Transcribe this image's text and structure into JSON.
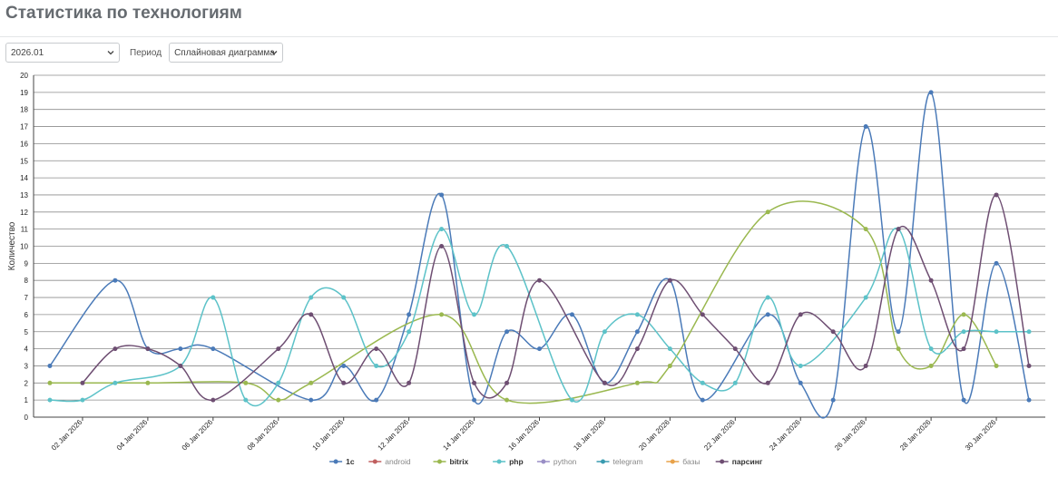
{
  "page": {
    "title": "Статистика по технологиям"
  },
  "controls": {
    "month_value": "2026.01",
    "period_label": "Период",
    "chart_type_value": "Сплайновая диаграмма"
  },
  "icons": {
    "select_chevron": "chevron-down-icon"
  },
  "chart_data": {
    "type": "line",
    "interpolation": "spline",
    "title": "",
    "xlabel": "",
    "ylabel": "Количество",
    "ylim": [
      0,
      20
    ],
    "yticks": [
      0,
      1,
      2,
      3,
      4,
      5,
      6,
      7,
      8,
      9,
      10,
      11,
      12,
      13,
      14,
      15,
      16,
      17,
      18,
      19,
      20
    ],
    "grid": true,
    "legend_position": "bottom",
    "x_domain": [
      "2026-01-01",
      "2026-01-31"
    ],
    "x_tick_labels": [
      "02 Jan 2026",
      "04 Jan 2026",
      "06 Jan 2026",
      "08 Jan 2026",
      "10 Jan 2026",
      "12 Jan 2026",
      "14 Jan 2026",
      "16 Jan 2026",
      "18 Jan 2026",
      "20 Jan 2026",
      "22 Jan 2026",
      "24 Jan 2026",
      "26 Jan 2026",
      "28 Jan 2026",
      "30 Jan 2026"
    ],
    "series": [
      {
        "name": "1c",
        "color": "#4a7ab8",
        "points": [
          [
            "2026-01-01",
            3
          ],
          [
            "2026-01-03",
            8
          ],
          [
            "2026-01-04",
            4
          ],
          [
            "2026-01-05",
            4
          ],
          [
            "2026-01-06",
            4
          ],
          [
            "2026-01-09",
            1
          ],
          [
            "2026-01-10",
            3
          ],
          [
            "2026-01-11",
            1
          ],
          [
            "2026-01-12",
            6
          ],
          [
            "2026-01-13",
            13
          ],
          [
            "2026-01-14",
            1
          ],
          [
            "2026-01-15",
            5
          ],
          [
            "2026-01-16",
            4
          ],
          [
            "2026-01-17",
            6
          ],
          [
            "2026-01-18",
            2
          ],
          [
            "2026-01-19",
            5
          ],
          [
            "2026-01-20",
            8
          ],
          [
            "2026-01-21",
            1
          ],
          [
            "2026-01-23",
            6
          ],
          [
            "2026-01-24",
            2
          ],
          [
            "2026-01-25",
            1
          ],
          [
            "2026-01-26",
            17
          ],
          [
            "2026-01-27",
            5
          ],
          [
            "2026-01-28",
            19
          ],
          [
            "2026-01-29",
            1
          ],
          [
            "2026-01-30",
            9
          ],
          [
            "2026-01-31",
            1
          ]
        ]
      },
      {
        "name": "android",
        "color": "#c05f5f",
        "points": []
      },
      {
        "name": "bitrix",
        "color": "#9ab84f",
        "points": [
          [
            "2026-01-01",
            2
          ],
          [
            "2026-01-04",
            2
          ],
          [
            "2026-01-07",
            2
          ],
          [
            "2026-01-08",
            1
          ],
          [
            "2026-01-09",
            2
          ],
          [
            "2026-01-13",
            6
          ],
          [
            "2026-01-15",
            1
          ],
          [
            "2026-01-19",
            2
          ],
          [
            "2026-01-20",
            3
          ],
          [
            "2026-01-23",
            12
          ],
          [
            "2026-01-26",
            11
          ],
          [
            "2026-01-27",
            4
          ],
          [
            "2026-01-28",
            3
          ],
          [
            "2026-01-29",
            6
          ],
          [
            "2026-01-30",
            3
          ]
        ]
      },
      {
        "name": "php",
        "color": "#5cc2c8",
        "points": [
          [
            "2026-01-01",
            1
          ],
          [
            "2026-01-02",
            1
          ],
          [
            "2026-01-03",
            2
          ],
          [
            "2026-01-05",
            3
          ],
          [
            "2026-01-06",
            7
          ],
          [
            "2026-01-07",
            1
          ],
          [
            "2026-01-08",
            2
          ],
          [
            "2026-01-09",
            7
          ],
          [
            "2026-01-10",
            7
          ],
          [
            "2026-01-11",
            3
          ],
          [
            "2026-01-12",
            5
          ],
          [
            "2026-01-13",
            11
          ],
          [
            "2026-01-14",
            6
          ],
          [
            "2026-01-15",
            10
          ],
          [
            "2026-01-17",
            1
          ],
          [
            "2026-01-18",
            5
          ],
          [
            "2026-01-19",
            6
          ],
          [
            "2026-01-20",
            4
          ],
          [
            "2026-01-21",
            2
          ],
          [
            "2026-01-22",
            2
          ],
          [
            "2026-01-23",
            7
          ],
          [
            "2026-01-24",
            3
          ],
          [
            "2026-01-26",
            7
          ],
          [
            "2026-01-27",
            11
          ],
          [
            "2026-01-28",
            4
          ],
          [
            "2026-01-29",
            5
          ],
          [
            "2026-01-30",
            5
          ],
          [
            "2026-01-31",
            5
          ]
        ]
      },
      {
        "name": "python",
        "color": "#9a8fc6",
        "points": []
      },
      {
        "name": "telegram",
        "color": "#3a9bb0",
        "points": []
      },
      {
        "name": "базы",
        "color": "#e8a24a",
        "points": []
      },
      {
        "name": "парсинг",
        "color": "#6e4e72",
        "points": [
          [
            "2026-01-02",
            2
          ],
          [
            "2026-01-03",
            4
          ],
          [
            "2026-01-04",
            4
          ],
          [
            "2026-01-05",
            3
          ],
          [
            "2026-01-06",
            1
          ],
          [
            "2026-01-08",
            4
          ],
          [
            "2026-01-09",
            6
          ],
          [
            "2026-01-10",
            2
          ],
          [
            "2026-01-11",
            4
          ],
          [
            "2026-01-12",
            2
          ],
          [
            "2026-01-13",
            10
          ],
          [
            "2026-01-14",
            2
          ],
          [
            "2026-01-15",
            2
          ],
          [
            "2026-01-16",
            8
          ],
          [
            "2026-01-18",
            2
          ],
          [
            "2026-01-19",
            4
          ],
          [
            "2026-01-20",
            8
          ],
          [
            "2026-01-21",
            6
          ],
          [
            "2026-01-22",
            4
          ],
          [
            "2026-01-23",
            2
          ],
          [
            "2026-01-24",
            6
          ],
          [
            "2026-01-25",
            5
          ],
          [
            "2026-01-26",
            3
          ],
          [
            "2026-01-27",
            11
          ],
          [
            "2026-01-28",
            8
          ],
          [
            "2026-01-29",
            4
          ],
          [
            "2026-01-30",
            13
          ],
          [
            "2026-01-31",
            3
          ]
        ]
      }
    ]
  }
}
